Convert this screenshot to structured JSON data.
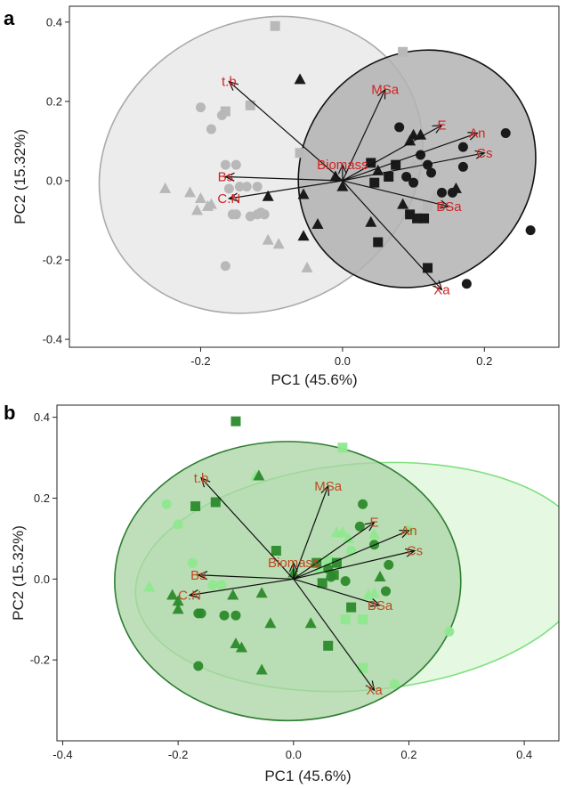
{
  "chart_data": [
    {
      "type": "scatter",
      "panel_label": "a",
      "xlabel": "PC1 (45.6%)",
      "ylabel": "PC2 (15.32%)",
      "xlim": [
        -0.385,
        0.305
      ],
      "ylim": [
        -0.42,
        0.44
      ],
      "xticks": [
        -0.2,
        0.0,
        0.2
      ],
      "xtick_labels": [
        "-0.2",
        "0.0",
        "0.2"
      ],
      "yticks": [
        -0.4,
        -0.2,
        0.0,
        0.2,
        0.4
      ],
      "ytick_labels": [
        "-0.4",
        "-0.2",
        "0.0",
        "0.2",
        "0.4"
      ],
      "grid": false,
      "colors": {
        "group1": "#b8b8b8",
        "group2": "#1a1a1a",
        "label": "#d32222",
        "ellipse1_fill": "#ececec",
        "ellipse2_fill": "#b3b3b3"
      },
      "ellipses": [
        {
          "group": "group1",
          "cx": -0.115,
          "cy": 0.04,
          "rx": 0.235,
          "ry": 0.36,
          "angle": -28
        },
        {
          "group": "group2",
          "cx": 0.105,
          "cy": 0.03,
          "rx": 0.175,
          "ry": 0.285,
          "angle": -45
        }
      ],
      "loadings": [
        {
          "name": "t.b",
          "x": -0.16,
          "y": 0.25
        },
        {
          "name": "MSa",
          "x": 0.06,
          "y": 0.23
        },
        {
          "name": "E",
          "x": 0.14,
          "y": 0.14
        },
        {
          "name": "An",
          "x": 0.19,
          "y": 0.12
        },
        {
          "name": "Cs",
          "x": 0.2,
          "y": 0.07
        },
        {
          "name": "Biomass",
          "x": 0.0,
          "y": 0.04
        },
        {
          "name": "Bs",
          "x": -0.165,
          "y": 0.01
        },
        {
          "name": "C.N",
          "x": -0.16,
          "y": -0.045
        },
        {
          "name": "BSa",
          "x": 0.15,
          "y": -0.065
        },
        {
          "name": "Xa",
          "x": 0.14,
          "y": -0.275
        }
      ],
      "series": [
        {
          "group": "group1",
          "marker": "circle",
          "points": [
            [
              -0.2,
              0.185
            ],
            [
              -0.17,
              0.165
            ],
            [
              -0.185,
              0.13
            ],
            [
              -0.165,
              0.04
            ],
            [
              -0.15,
              0.04
            ],
            [
              -0.145,
              -0.015
            ],
            [
              -0.16,
              -0.02
            ],
            [
              -0.135,
              -0.015
            ],
            [
              -0.12,
              -0.015
            ],
            [
              -0.155,
              -0.085
            ],
            [
              -0.15,
              -0.085
            ],
            [
              -0.12,
              -0.085
            ],
            [
              -0.11,
              -0.085
            ],
            [
              -0.115,
              -0.08
            ],
            [
              -0.13,
              -0.09
            ],
            [
              -0.165,
              -0.215
            ]
          ]
        },
        {
          "group": "group1",
          "marker": "triangle",
          "points": [
            [
              -0.25,
              -0.02
            ],
            [
              -0.215,
              -0.03
            ],
            [
              -0.2,
              -0.045
            ],
            [
              -0.205,
              -0.075
            ],
            [
              -0.19,
              -0.065
            ],
            [
              -0.185,
              -0.06
            ],
            [
              -0.105,
              -0.15
            ],
            [
              -0.09,
              -0.16
            ],
            [
              -0.05,
              -0.22
            ],
            [
              0.1,
              0.04
            ],
            [
              0.13,
              -0.04
            ]
          ]
        },
        {
          "group": "group1",
          "marker": "square",
          "points": [
            [
              -0.095,
              0.39
            ],
            [
              0.085,
              0.325
            ],
            [
              -0.165,
              0.175
            ],
            [
              -0.13,
              0.19
            ],
            [
              -0.06,
              0.07
            ],
            [
              0.12,
              -0.065
            ],
            [
              0.135,
              -0.04
            ]
          ]
        },
        {
          "group": "group2",
          "marker": "circle",
          "points": [
            [
              0.23,
              0.12
            ],
            [
              0.17,
              0.085
            ],
            [
              0.17,
              0.035
            ],
            [
              0.12,
              0.04
            ],
            [
              0.11,
              0.065
            ],
            [
              0.08,
              0.135
            ],
            [
              0.125,
              0.02
            ],
            [
              0.14,
              -0.03
            ],
            [
              0.155,
              -0.03
            ],
            [
              0.09,
              0.01
            ],
            [
              0.1,
              -0.005
            ],
            [
              0.265,
              -0.125
            ],
            [
              0.175,
              -0.26
            ]
          ]
        },
        {
          "group": "group2",
          "marker": "triangle",
          "points": [
            [
              -0.06,
              0.255
            ],
            [
              0.11,
              0.115
            ],
            [
              0.1,
              0.115
            ],
            [
              0.095,
              0.1
            ],
            [
              0.16,
              -0.02
            ],
            [
              -0.01,
              0.01
            ],
            [
              -0.105,
              -0.04
            ],
            [
              0.085,
              -0.06
            ],
            [
              -0.055,
              -0.035
            ],
            [
              -0.035,
              -0.11
            ],
            [
              0.04,
              -0.105
            ],
            [
              -0.055,
              -0.14
            ],
            [
              0.05,
              0.025
            ],
            [
              0.0,
              -0.015
            ]
          ]
        },
        {
          "group": "group2",
          "marker": "square",
          "points": [
            [
              0.04,
              0.045
            ],
            [
              0.075,
              0.04
            ],
            [
              0.065,
              0.01
            ],
            [
              0.045,
              -0.005
            ],
            [
              0.095,
              -0.085
            ],
            [
              0.105,
              -0.095
            ],
            [
              0.115,
              -0.095
            ],
            [
              0.05,
              -0.155
            ],
            [
              0.12,
              -0.22
            ]
          ]
        }
      ]
    },
    {
      "type": "scatter",
      "panel_label": "b",
      "xlabel": "PC1 (45.6%)",
      "ylabel": "PC2 (15.32%)",
      "xlim": [
        -0.41,
        0.46
      ],
      "ylim": [
        -0.4,
        0.43
      ],
      "xticks": [
        -0.4,
        -0.2,
        0.0,
        0.2,
        0.4
      ],
      "xtick_labels": [
        "-0.4",
        "-0.2",
        "0.0",
        "0.2",
        "0.4"
      ],
      "yticks": [
        -0.2,
        0.0,
        0.2,
        0.4
      ],
      "ytick_labels": [
        "-0.2",
        "0.0",
        "0.2",
        "0.4"
      ],
      "grid": false,
      "colors": {
        "group1": "#8ee88e",
        "group2": "#2b8a2b",
        "label": "#c0491e",
        "ellipse1_fill": "#e4f8e0",
        "ellipse2_fill": "#a9d4a4",
        "ellipse1_stroke": "#7fe07f",
        "ellipse2_stroke": "#2e7d32"
      },
      "ellipses": [
        {
          "group": "group1",
          "cx": 0.12,
          "cy": 0.005,
          "rx": 0.395,
          "ry": 0.28,
          "angle": -5
        },
        {
          "group": "group2",
          "cx": -0.01,
          "cy": -0.005,
          "rx": 0.3,
          "ry": 0.345,
          "angle": 0
        }
      ],
      "loadings": [
        {
          "name": "t.b",
          "x": -0.16,
          "y": 0.25
        },
        {
          "name": "MSa",
          "x": 0.06,
          "y": 0.23
        },
        {
          "name": "E",
          "x": 0.14,
          "y": 0.14
        },
        {
          "name": "An",
          "x": 0.2,
          "y": 0.12
        },
        {
          "name": "Cs",
          "x": 0.21,
          "y": 0.07
        },
        {
          "name": "Biomass",
          "x": 0.0,
          "y": 0.04
        },
        {
          "name": "Bs",
          "x": -0.165,
          "y": 0.01
        },
        {
          "name": "C.N",
          "x": -0.18,
          "y": -0.04
        },
        {
          "name": "BSa",
          "x": 0.15,
          "y": -0.065
        },
        {
          "name": "Xa",
          "x": 0.14,
          "y": -0.275
        }
      ],
      "series": [
        {
          "group": "group1",
          "marker": "circle",
          "points": [
            [
              -0.22,
              0.185
            ],
            [
              -0.2,
              0.135
            ],
            [
              -0.175,
              0.04
            ],
            [
              -0.14,
              -0.015
            ],
            [
              -0.125,
              -0.015
            ],
            [
              0.1,
              0.07
            ],
            [
              0.2,
              0.12
            ],
            [
              0.27,
              -0.13
            ],
            [
              0.175,
              -0.26
            ]
          ]
        },
        {
          "group": "group1",
          "marker": "triangle",
          "points": [
            [
              -0.065,
              0.255
            ],
            [
              -0.25,
              -0.02
            ],
            [
              0.075,
              0.115
            ],
            [
              0.085,
              0.115
            ],
            [
              0.095,
              0.1
            ],
            [
              0.14,
              0.11
            ],
            [
              0.045,
              0.025
            ],
            [
              0.14,
              -0.035
            ],
            [
              0.13,
              -0.04
            ]
          ]
        },
        {
          "group": "group1",
          "marker": "square",
          "points": [
            [
              0.085,
              0.325
            ],
            [
              0.06,
              0.045
            ],
            [
              0.09,
              -0.1
            ],
            [
              0.12,
              -0.1
            ],
            [
              0.12,
              -0.22
            ]
          ]
        },
        {
          "group": "group2",
          "marker": "circle",
          "points": [
            [
              0.12,
              0.185
            ],
            [
              0.115,
              0.13
            ],
            [
              0.165,
              0.035
            ],
            [
              0.14,
              0.085
            ],
            [
              0.06,
              0.025
            ],
            [
              0.16,
              -0.03
            ],
            [
              0.09,
              -0.005
            ],
            [
              0.065,
              0.005
            ],
            [
              -0.165,
              -0.085
            ],
            [
              -0.16,
              -0.085
            ],
            [
              -0.165,
              -0.215
            ],
            [
              -0.12,
              -0.09
            ],
            [
              -0.1,
              -0.09
            ]
          ]
        },
        {
          "group": "group2",
          "marker": "triangle",
          "points": [
            [
              -0.21,
              -0.04
            ],
            [
              -0.2,
              -0.055
            ],
            [
              -0.2,
              -0.075
            ],
            [
              -0.06,
              0.255
            ],
            [
              -0.105,
              -0.04
            ],
            [
              -0.055,
              -0.035
            ],
            [
              -0.04,
              -0.11
            ],
            [
              -0.1,
              -0.16
            ],
            [
              -0.09,
              -0.17
            ],
            [
              -0.055,
              -0.225
            ],
            [
              0.03,
              -0.11
            ],
            [
              0.0,
              0.015
            ],
            [
              0.15,
              0.005
            ]
          ]
        },
        {
          "group": "group2",
          "marker": "square",
          "points": [
            [
              -0.1,
              0.39
            ],
            [
              -0.17,
              0.18
            ],
            [
              -0.135,
              0.19
            ],
            [
              -0.03,
              0.07
            ],
            [
              0.04,
              0.04
            ],
            [
              0.075,
              0.04
            ],
            [
              0.07,
              0.01
            ],
            [
              0.05,
              -0.01
            ],
            [
              0.1,
              -0.07
            ],
            [
              0.06,
              -0.165
            ]
          ]
        }
      ]
    }
  ]
}
